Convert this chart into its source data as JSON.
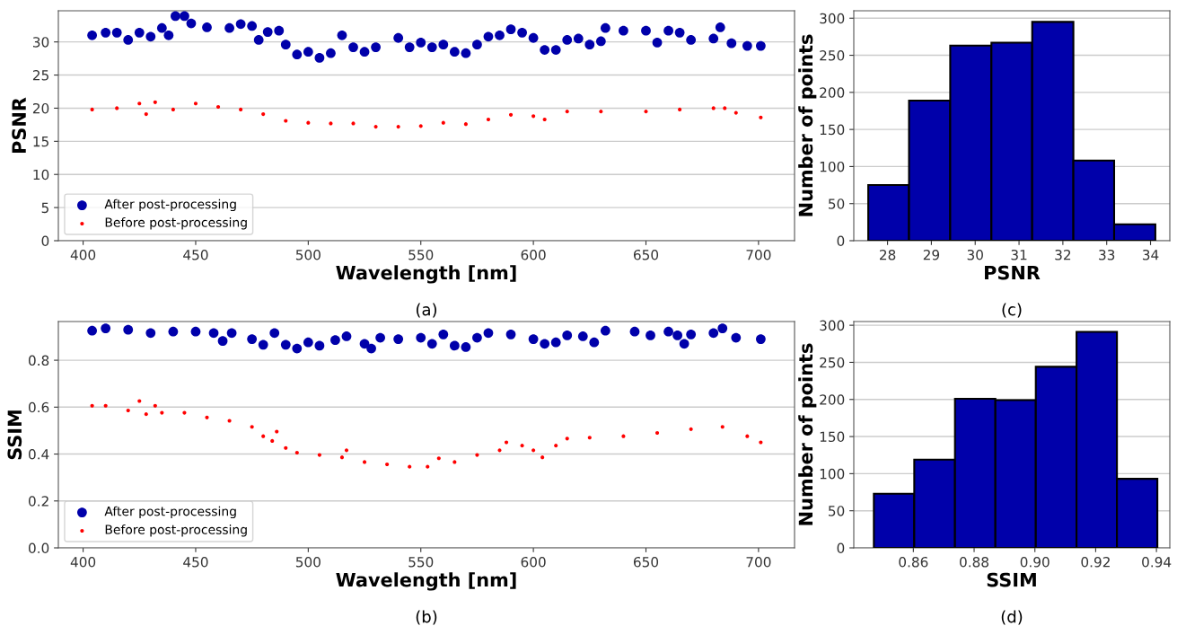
{
  "chart_data": [
    {
      "type": "scatter",
      "xlabel": "Wavelength [nm]",
      "ylabel": "PSNR",
      "annotations": [
        "(a)"
      ],
      "xlim": [
        389,
        716
      ],
      "xticks": [
        400,
        450,
        500,
        550,
        600,
        650,
        700
      ],
      "ylim": [
        0,
        34.7
      ],
      "yticks": [
        0,
        5,
        10,
        15,
        20,
        25,
        30
      ],
      "grid": "y",
      "legend": "bottom left",
      "marker": "circle",
      "series": [
        {
          "name": "After post-processing",
          "color": "#0000aa",
          "x": [
            404,
            410,
            415,
            420,
            425,
            430,
            435,
            438,
            441,
            445,
            448,
            455,
            465,
            470,
            475,
            478,
            482,
            487,
            490,
            495,
            500,
            505,
            510,
            515,
            520,
            525,
            530,
            540,
            545,
            550,
            555,
            560,
            565,
            570,
            575,
            580,
            585,
            590,
            595,
            600,
            605,
            610,
            615,
            620,
            625,
            630,
            632,
            640,
            650,
            655,
            660,
            665,
            670,
            680,
            683,
            688,
            695,
            701
          ],
          "values": [
            31.0,
            31.4,
            31.4,
            30.3,
            31.4,
            30.8,
            32.1,
            31.0,
            33.9,
            33.9,
            32.8,
            32.2,
            32.1,
            32.7,
            32.4,
            30.3,
            31.5,
            31.7,
            29.6,
            28.1,
            28.5,
            27.6,
            28.3,
            31.0,
            29.2,
            28.5,
            29.2,
            30.6,
            29.2,
            29.9,
            29.2,
            29.6,
            28.5,
            28.3,
            29.6,
            30.8,
            31.0,
            31.9,
            31.4,
            30.6,
            28.8,
            28.8,
            30.3,
            30.5,
            29.6,
            30.1,
            32.1,
            31.7,
            31.7,
            29.9,
            31.7,
            31.4,
            30.3,
            30.5,
            32.2,
            29.8,
            29.4,
            29.4
          ]
        },
        {
          "name": "Before post-processing",
          "color": "#ff0000",
          "x": [
            404,
            415,
            425,
            428,
            432,
            440,
            450,
            460,
            470,
            480,
            490,
            500,
            510,
            520,
            530,
            540,
            550,
            560,
            570,
            580,
            590,
            600,
            605,
            615,
            630,
            650,
            665,
            680,
            685,
            690,
            701
          ],
          "values": [
            19.8,
            20.0,
            20.7,
            19.1,
            20.9,
            19.8,
            20.7,
            20.2,
            19.8,
            19.1,
            18.1,
            17.8,
            17.7,
            17.7,
            17.2,
            17.2,
            17.3,
            17.8,
            17.6,
            18.3,
            19.0,
            18.8,
            18.3,
            19.5,
            19.5,
            19.5,
            19.8,
            20.0,
            20.0,
            19.3,
            18.6
          ]
        }
      ]
    },
    {
      "type": "histogram",
      "xlabel": "PSNR",
      "ylabel": "Number of points",
      "annotations": [
        "(c)"
      ],
      "color": "#0000aa",
      "bins": [
        27.56,
        28.49,
        29.43,
        30.37,
        31.3,
        32.24,
        33.17,
        34.11
      ],
      "values": [
        75,
        189,
        263,
        267,
        295,
        108,
        22
      ],
      "xlim": [
        27.23,
        34.44
      ],
      "xticks": [
        28,
        29,
        30,
        31,
        32,
        33,
        34
      ],
      "ylim": [
        0,
        310
      ],
      "yticks": [
        0,
        50,
        100,
        150,
        200,
        250,
        300
      ],
      "grid": "y"
    },
    {
      "type": "scatter",
      "xlabel": "Wavelength [nm]",
      "ylabel": "SSIM",
      "annotations": [
        "(b)"
      ],
      "xlim": [
        389,
        716
      ],
      "xticks": [
        400,
        450,
        500,
        550,
        600,
        650,
        700
      ],
      "ylim": [
        0,
        0.965
      ],
      "yticks": [
        {
          "value": 0,
          "label": "0.0"
        },
        0.2,
        0.4,
        0.6,
        0.8
      ],
      "grid": "y",
      "legend": "bottom left",
      "marker": "circle",
      "series": [
        {
          "name": "After post-processing",
          "color": "#0000aa",
          "x": [
            404,
            410,
            420,
            430,
            440,
            450,
            458,
            462,
            466,
            475,
            480,
            485,
            490,
            495,
            500,
            505,
            512,
            517,
            525,
            528,
            532,
            540,
            550,
            555,
            560,
            565,
            570,
            575,
            580,
            590,
            600,
            605,
            610,
            615,
            622,
            627,
            632,
            645,
            652,
            660,
            664,
            667,
            670,
            680,
            684,
            690,
            701
          ],
          "values": [
            0.926,
            0.936,
            0.93,
            0.916,
            0.922,
            0.922,
            0.916,
            0.882,
            0.916,
            0.89,
            0.866,
            0.916,
            0.866,
            0.85,
            0.876,
            0.862,
            0.886,
            0.902,
            0.87,
            0.85,
            0.896,
            0.89,
            0.896,
            0.87,
            0.91,
            0.862,
            0.856,
            0.896,
            0.916,
            0.91,
            0.89,
            0.87,
            0.876,
            0.906,
            0.902,
            0.876,
            0.926,
            0.922,
            0.906,
            0.922,
            0.906,
            0.87,
            0.91,
            0.916,
            0.936,
            0.896,
            0.89
          ]
        },
        {
          "name": "Before post-processing",
          "color": "#ff0000",
          "x": [
            404,
            410,
            420,
            425,
            428,
            432,
            435,
            445,
            455,
            465,
            475,
            480,
            484,
            486,
            490,
            495,
            505,
            515,
            517,
            525,
            535,
            545,
            553,
            558,
            565,
            575,
            585,
            588,
            595,
            600,
            604,
            610,
            615,
            625,
            640,
            655,
            670,
            684,
            695,
            701
          ],
          "values": [
            0.606,
            0.606,
            0.586,
            0.626,
            0.57,
            0.606,
            0.576,
            0.576,
            0.556,
            0.542,
            0.516,
            0.476,
            0.456,
            0.496,
            0.426,
            0.406,
            0.396,
            0.386,
            0.416,
            0.366,
            0.356,
            0.346,
            0.346,
            0.382,
            0.366,
            0.396,
            0.416,
            0.45,
            0.436,
            0.416,
            0.386,
            0.436,
            0.466,
            0.47,
            0.476,
            0.49,
            0.506,
            0.516,
            0.476,
            0.45
          ]
        }
      ]
    },
    {
      "type": "histogram",
      "xlabel": "SSIM",
      "ylabel": "Number of points",
      "annotations": [
        "(d)"
      ],
      "color": "#0000aa",
      "bins": [
        0.847,
        0.8603,
        0.8737,
        0.887,
        0.9003,
        0.9137,
        0.927,
        0.9403
      ],
      "values": [
        73,
        119,
        201,
        199,
        244,
        291,
        93
      ],
      "xlim": [
        0.8404,
        0.9444
      ],
      "xticks": [
        0.86,
        0.88,
        {
          "value": 0.9,
          "label": "0.90"
        },
        0.92,
        0.94
      ],
      "ylim": [
        0,
        305
      ],
      "yticks": [
        0,
        50,
        100,
        150,
        200,
        250,
        300
      ],
      "grid": "y"
    }
  ]
}
